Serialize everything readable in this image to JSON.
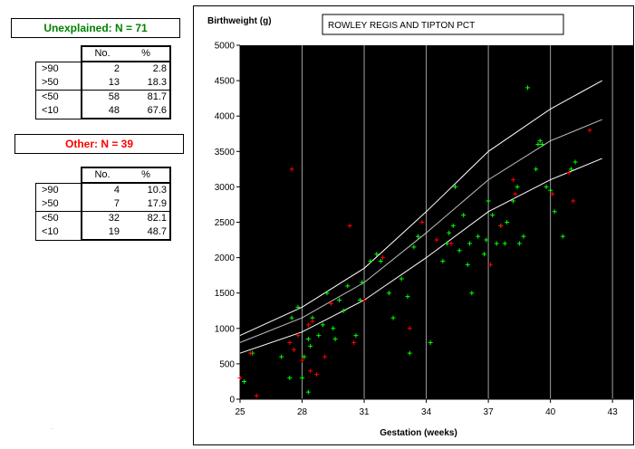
{
  "unexplained": {
    "title": "Unexplained: N = 71",
    "headers": [
      "No.",
      "%"
    ],
    "rows": [
      {
        "label": ">90",
        "no": "2",
        "pct": "2.8"
      },
      {
        "label": ">50",
        "no": "13",
        "pct": "18.3"
      },
      {
        "label": "<50",
        "no": "58",
        "pct": "81.7"
      },
      {
        "label": "<10",
        "no": "48",
        "pct": "67.6"
      }
    ]
  },
  "other": {
    "title": "Other: N = 39",
    "headers": [
      "No.",
      "%"
    ],
    "rows": [
      {
        "label": ">90",
        "no": "4",
        "pct": "10.3"
      },
      {
        "label": ">50",
        "no": "7",
        "pct": "17.9"
      },
      {
        "label": "<50",
        "no": "32",
        "pct": "82.1"
      },
      {
        "label": "<10",
        "no": "19",
        "pct": "48.7"
      }
    ]
  },
  "footnote": ".",
  "chart_data": {
    "type": "scatter",
    "title": "ROWLEY REGIS AND TIPTON PCT",
    "ylabel": "Birthweight (g)",
    "xlabel": "Gestation (weeks)",
    "xlim": [
      25,
      44
    ],
    "ylim": [
      0,
      5000
    ],
    "xticks": [
      25,
      28,
      31,
      34,
      37,
      40,
      43
    ],
    "yticks": [
      0,
      500,
      1000,
      1500,
      2000,
      2500,
      3000,
      3500,
      4000,
      4500,
      5000
    ],
    "grid": "vertical",
    "background": "#000000",
    "colors": {
      "unexplained": "#00ff00",
      "other": "#ff0000",
      "centile": "#ffffff",
      "median": "#c0c0c0"
    },
    "centiles": [
      {
        "x": [
          25,
          28,
          31,
          34,
          37,
          40,
          42.5
        ],
        "y": [
          900,
          1300,
          1850,
          2650,
          3500,
          4100,
          4500
        ]
      },
      {
        "x": [
          25,
          28,
          31,
          34,
          37,
          40,
          42.5
        ],
        "y": [
          800,
          1150,
          1650,
          2350,
          3100,
          3650,
          3950
        ]
      },
      {
        "x": [
          25,
          28,
          31,
          34,
          37,
          40,
          42.5
        ],
        "y": [
          650,
          950,
          1400,
          2000,
          2650,
          3100,
          3400
        ]
      }
    ],
    "series": [
      {
        "points": [
          [
            25.2,
            250
          ],
          [
            25.6,
            650
          ],
          [
            27.0,
            600
          ],
          [
            27.4,
            300
          ],
          [
            27.5,
            1150
          ],
          [
            27.8,
            1300
          ],
          [
            28.0,
            300
          ],
          [
            28.1,
            600
          ],
          [
            28.3,
            100
          ],
          [
            28.3,
            850
          ],
          [
            28.4,
            750
          ],
          [
            28.5,
            1150
          ],
          [
            28.8,
            900
          ],
          [
            29.0,
            1050
          ],
          [
            29.2,
            1500
          ],
          [
            29.5,
            1000
          ],
          [
            29.6,
            850
          ],
          [
            29.8,
            1400
          ],
          [
            30.0,
            1250
          ],
          [
            30.2,
            1600
          ],
          [
            30.6,
            900
          ],
          [
            30.8,
            1400
          ],
          [
            30.9,
            1650
          ],
          [
            31.3,
            1950
          ],
          [
            31.6,
            2050
          ],
          [
            31.8,
            1950
          ],
          [
            32.2,
            1500
          ],
          [
            32.4,
            1150
          ],
          [
            32.8,
            1700
          ],
          [
            33.1,
            1450
          ],
          [
            33.2,
            650
          ],
          [
            33.4,
            2150
          ],
          [
            33.6,
            2300
          ],
          [
            34.2,
            800
          ],
          [
            34.8,
            1950
          ],
          [
            35.0,
            2200
          ],
          [
            35.1,
            2350
          ],
          [
            35.3,
            2450
          ],
          [
            35.4,
            3000
          ],
          [
            35.6,
            2100
          ],
          [
            35.8,
            2600
          ],
          [
            36.0,
            1900
          ],
          [
            36.1,
            2200
          ],
          [
            36.2,
            1500
          ],
          [
            36.5,
            2300
          ],
          [
            36.8,
            2050
          ],
          [
            36.9,
            2250
          ],
          [
            37.0,
            2800
          ],
          [
            37.2,
            2600
          ],
          [
            37.4,
            2200
          ],
          [
            37.6,
            2450
          ],
          [
            37.8,
            2200
          ],
          [
            37.9,
            2500
          ],
          [
            38.2,
            2800
          ],
          [
            38.4,
            3000
          ],
          [
            38.5,
            2200
          ],
          [
            38.7,
            2300
          ],
          [
            38.9,
            4400
          ],
          [
            39.3,
            3250
          ],
          [
            39.4,
            3600
          ],
          [
            39.5,
            3650
          ],
          [
            39.6,
            3600
          ],
          [
            39.8,
            3000
          ],
          [
            40.0,
            2950
          ],
          [
            40.2,
            2650
          ],
          [
            40.6,
            2300
          ],
          [
            41.0,
            3250
          ],
          [
            41.2,
            3350
          ]
        ]
      },
      {
        "points": [
          [
            25.0,
            300
          ],
          [
            25.5,
            650
          ],
          [
            25.8,
            50
          ],
          [
            27.4,
            800
          ],
          [
            27.5,
            3250
          ],
          [
            27.6,
            700
          ],
          [
            27.8,
            900
          ],
          [
            28.0,
            550
          ],
          [
            28.3,
            1050
          ],
          [
            28.4,
            400
          ],
          [
            28.5,
            1100
          ],
          [
            28.7,
            350
          ],
          [
            29.1,
            600
          ],
          [
            29.4,
            1350
          ],
          [
            30.3,
            2450
          ],
          [
            30.5,
            800
          ],
          [
            31.0,
            1400
          ],
          [
            31.9,
            2000
          ],
          [
            33.2,
            1000
          ],
          [
            33.8,
            2500
          ],
          [
            34.5,
            2250
          ],
          [
            35.2,
            2200
          ],
          [
            37.1,
            1900
          ],
          [
            37.6,
            2450
          ],
          [
            38.2,
            3100
          ],
          [
            38.3,
            2900
          ],
          [
            40.1,
            2900
          ],
          [
            40.9,
            3200
          ],
          [
            41.1,
            2800
          ],
          [
            41.9,
            3800
          ]
        ]
      }
    ]
  }
}
